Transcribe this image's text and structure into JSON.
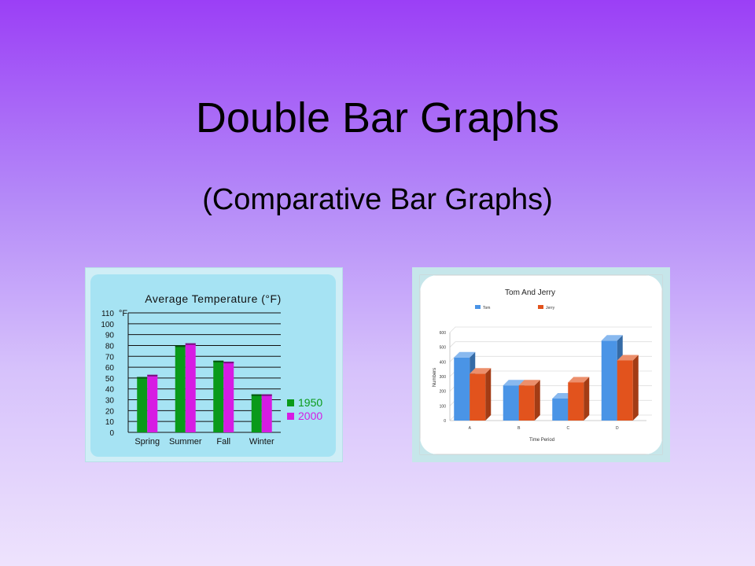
{
  "slide": {
    "title": "Double Bar Graphs",
    "subtitle": "(Comparative Bar Graphs)"
  },
  "colors": {
    "background_top": "#9b3ff6",
    "background_bottom": "#eee3fd",
    "series_1950": "#0a9a1a",
    "series_2000": "#d61ce3",
    "series_tom": "#4a94e6",
    "series_jerry": "#e2531d"
  },
  "chart_data": [
    {
      "type": "bar",
      "title": "Average Temperature (°F)",
      "ylabel": "°F",
      "unit_label": "°F",
      "categories": [
        "Spring",
        "Summer",
        "Fall",
        "Winter"
      ],
      "series": [
        {
          "name": "1950",
          "values": [
            51,
            80,
            66,
            35
          ]
        },
        {
          "name": "2000",
          "values": [
            53,
            82,
            65,
            35
          ]
        }
      ],
      "ylim": [
        0,
        110
      ],
      "yticks": [
        0,
        10,
        20,
        30,
        40,
        50,
        60,
        70,
        80,
        90,
        100,
        110
      ],
      "grid": true,
      "legend_position": "right"
    },
    {
      "type": "bar",
      "title": "Tom And Jerry",
      "xlabel": "Time Period",
      "ylabel": "Numbers",
      "categories": [
        "A",
        "B",
        "C",
        "D"
      ],
      "series": [
        {
          "name": "Tom",
          "values": [
            430,
            240,
            150,
            545
          ]
        },
        {
          "name": "Jerry",
          "values": [
            320,
            240,
            260,
            410
          ]
        }
      ],
      "ylim": [
        0,
        600
      ],
      "yticks": [
        0,
        100,
        200,
        300,
        400,
        500,
        600
      ],
      "grid": true,
      "legend_position": "top"
    }
  ]
}
